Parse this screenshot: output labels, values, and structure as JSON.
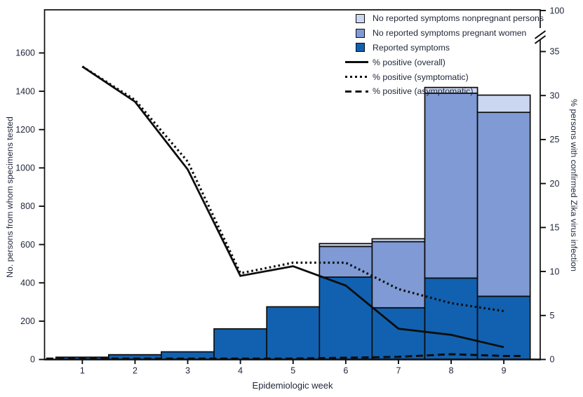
{
  "chart_data": {
    "type": "bar",
    "subtype": "stacked-bars-with-percent-lines",
    "title": "",
    "x_axis": {
      "label": "Epidemiologic week",
      "ticks": [
        1,
        2,
        3,
        4,
        5,
        6,
        7,
        8,
        9
      ]
    },
    "y_left": {
      "label": "No. persons from whom specimens tested",
      "min": 0,
      "max": 1600,
      "ticks": [
        0,
        200,
        400,
        600,
        800,
        1000,
        1200,
        1400,
        1600
      ]
    },
    "y_right": {
      "label": "% persons with confirmed Zika virus infection",
      "min": 0,
      "max": 35,
      "ticks": [
        0,
        5,
        10,
        15,
        20,
        25,
        30,
        35
      ],
      "broken_axis_top_tick": 100,
      "axis_break": true
    },
    "bar_series": [
      {
        "id": "reported-symptoms",
        "name": "Reported symptoms",
        "color": "#1161b0",
        "values": [
          12,
          25,
          40,
          160,
          275,
          430,
          270,
          425,
          330
        ]
      },
      {
        "id": "no-symptoms-pregnant",
        "name": "No reported symptoms pregnant women",
        "color": "#7f9ad4",
        "values": [
          0,
          0,
          0,
          0,
          0,
          160,
          345,
          965,
          960
        ]
      },
      {
        "id": "no-symptoms-nonpregnant",
        "name": "No reported symptoms nonpregnant persons",
        "color": "#cbd7f0",
        "values": [
          0,
          0,
          0,
          0,
          0,
          15,
          15,
          30,
          90
        ]
      }
    ],
    "line_series": [
      {
        "id": "percent-positive-overall",
        "name": "% positive (overall)",
        "style": "solid",
        "values": [
          33.3,
          29.3,
          21.6,
          9.5,
          10.6,
          8.4,
          3.5,
          2.8,
          1.4
        ]
      },
      {
        "id": "percent-positive-symptomatic",
        "name": "% positive (symptomatic)",
        "style": "dotted",
        "values": [
          33.3,
          29.5,
          22.5,
          9.8,
          11,
          11,
          8,
          6.4,
          5.5
        ]
      },
      {
        "id": "percent-positive-asymptomatic",
        "name": "% positive (asymptomatic)",
        "style": "dashed",
        "extend_to_edges": true,
        "values": [
          0.1,
          0.1,
          0.1,
          0.1,
          0.1,
          0.2,
          0.3,
          0.6,
          0.4
        ]
      }
    ],
    "legend": [
      {
        "label": "No reported symptoms nonpregnant persons",
        "swatch": "#cbd7f0"
      },
      {
        "label": "No reported symptoms pregnant women",
        "swatch": "#7f9ad4"
      },
      {
        "label": "Reported symptoms",
        "swatch": "#1161b0"
      },
      {
        "label": "% positive (overall)",
        "line": "solid"
      },
      {
        "label": "% positive (symptomatic)",
        "line": "dotted"
      },
      {
        "label": "% positive (asymptomatic)",
        "line": "dashed"
      }
    ],
    "colors": {
      "line": "#0d0d0d",
      "frame": "#0d0d0d",
      "text": "#1f2638"
    },
    "layout_hints": {
      "legend_position": "top-right-inside",
      "grid": false
    }
  }
}
